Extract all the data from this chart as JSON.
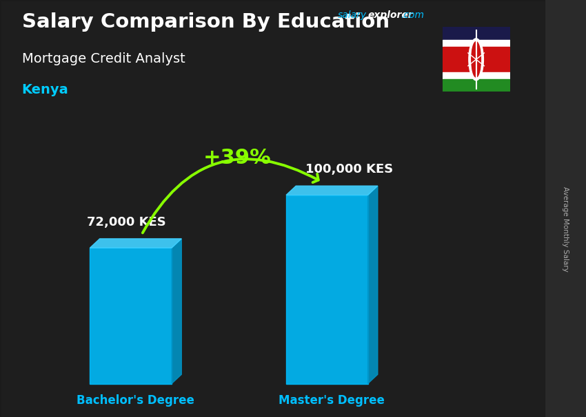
{
  "title_main": "Salary Comparison By Education",
  "subtitle1": "Mortgage Credit Analyst",
  "subtitle2": "Kenya",
  "categories": [
    "Bachelor's Degree",
    "Master's Degree"
  ],
  "values": [
    72000,
    100000
  ],
  "value_labels": [
    "72,000 KES",
    "100,000 KES"
  ],
  "bar_color_main": "#00BFFF",
  "bar_color_side": "#0095C8",
  "bar_color_top": "#40D0FF",
  "pct_label": "+39%",
  "pct_color": "#88FF00",
  "arrow_color": "#88FF00",
  "bg_color": "#2a2a2a",
  "title_color": "#FFFFFF",
  "subtitle_color": "#FFFFFF",
  "kenya_color": "#00CCFF",
  "value_label_color": "#FFFFFF",
  "category_label_color": "#00BFFF",
  "salary_text_color": "#00BFFF",
  "explorer_text_color": "#FFFFFF",
  "rotated_label_color": "#AAAAAA",
  "rotated_label": "Average Monthly Salary",
  "flag_black": "#1a1a3a",
  "flag_red": "#CC2222",
  "flag_green": "#228B22",
  "flag_white": "#FFFFFF"
}
